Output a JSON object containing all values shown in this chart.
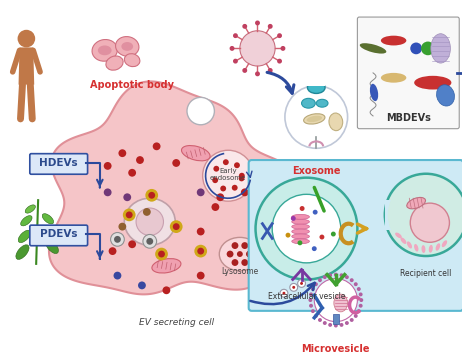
{
  "bg_color": "#ffffff",
  "labels": {
    "apoptotic_body": "Apoptotic body",
    "hdevs": "HDEVs",
    "pdevs": "PDEVs",
    "exosome": "Exosome",
    "mbdevs": "MBDEVs",
    "microvesicle": "Microvesicle",
    "early_endosome": "Early\nendosome",
    "lysosome": "Lysosome",
    "ev_secreting": "EV secreting cell",
    "extracellular": "Extracellular vesicle",
    "recipient": "Recipient cell"
  },
  "label_colors": {
    "apoptotic_body": "#d63030",
    "hdevs": "#2c4a8c",
    "pdevs": "#2c4a8c",
    "exosome": "#d63030",
    "mbdevs": "#333333",
    "microvesicle": "#d63030",
    "early_endosome": "#444444",
    "lysosome": "#444444",
    "ev_secreting": "#444444",
    "extracellular": "#333333",
    "recipient": "#333333"
  },
  "cell_color": "#f5c5c8",
  "cell_edge": "#e09098",
  "box_color": "#ceeaf5",
  "box_edge": "#5ab8d0",
  "ev_circle_color": "#c5ede8",
  "ev_circle_edge": "#3aaa9a",
  "arrow_blue": "#2c4a9c",
  "arrow_gold": "#d4a020",
  "human_color": "#c07848",
  "dot_red": "#b82020",
  "dot_purple": "#703878",
  "dot_brown": "#906030",
  "dot_gold": "#c8a020",
  "dot_blue": "#3848a0",
  "dot_gray": "#888898"
}
